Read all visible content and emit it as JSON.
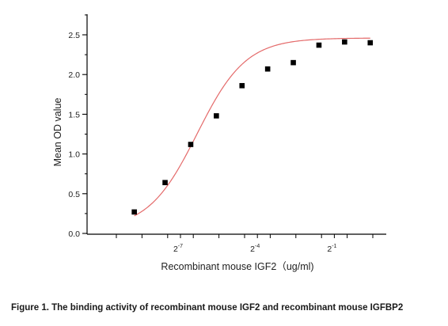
{
  "chart_data": {
    "type": "scatter",
    "xscale": "log2",
    "xlabel": "Recombinant mouse IGF2（ug/ml)",
    "ylabel": "Mean OD value",
    "ylim": [
      0,
      2.5
    ],
    "yticks": [
      {
        "value": 0.0,
        "label": "0.0"
      },
      {
        "value": 0.5,
        "label": "0.5"
      },
      {
        "value": 1.0,
        "label": "1.0"
      },
      {
        "value": 1.5,
        "label": "1.5"
      },
      {
        "value": 2.0,
        "label": "2.0"
      },
      {
        "value": 2.5,
        "label": "2.5"
      }
    ],
    "xticks_labeled": [
      {
        "exp": -7,
        "base": "2",
        "sup": "-7"
      },
      {
        "exp": -4,
        "base": "2",
        "sup": "-4"
      },
      {
        "exp": -1,
        "base": "2",
        "sup": "-1"
      }
    ],
    "xticks_minor_exps": [
      -9.5,
      -8.5,
      -7.5,
      -6.5,
      -5.5,
      -4.5,
      -3.5,
      -2.5,
      -1.5,
      -0.5,
      0.5
    ],
    "points": [
      {
        "x_exp": -8.8,
        "y": 0.27
      },
      {
        "x_exp": -7.6,
        "y": 0.64
      },
      {
        "x_exp": -6.6,
        "y": 1.12
      },
      {
        "x_exp": -5.6,
        "y": 1.48
      },
      {
        "x_exp": -4.6,
        "y": 1.86
      },
      {
        "x_exp": -3.6,
        "y": 2.07
      },
      {
        "x_exp": -2.6,
        "y": 2.15
      },
      {
        "x_exp": -1.6,
        "y": 2.37
      },
      {
        "x_exp": -0.6,
        "y": 2.41
      },
      {
        "x_exp": 0.4,
        "y": 2.4
      }
    ],
    "fit_curve_color": "#e46a6a",
    "marker_color": "#000000",
    "grid": false
  },
  "caption": "Figure 1. The binding activity of recombinant mouse IGF2 and recombinant mouse IGFBP2"
}
